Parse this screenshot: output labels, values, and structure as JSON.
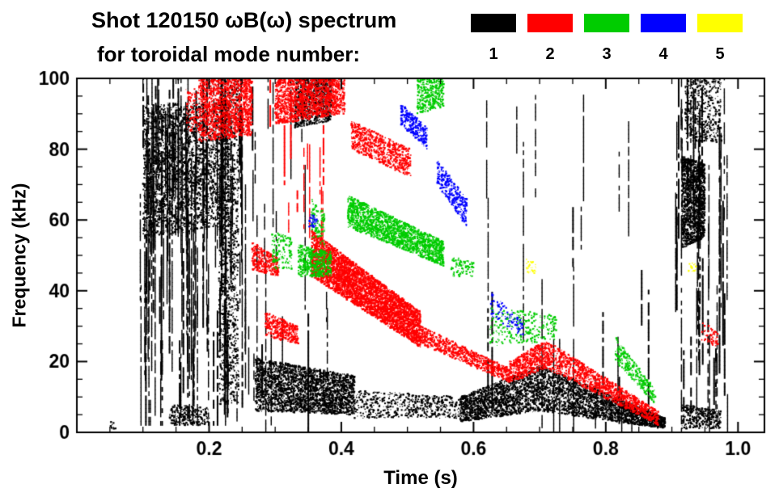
{
  "header": {
    "title_line1": "Shot 120150 ωB(ω) spectrum",
    "title_line2": "for toroidal mode number:"
  },
  "chart_data": {
    "type": "scatter",
    "title": "Shot 120150 ωB(ω) spectrum for toroidal mode number",
    "xlabel": "Time (s)",
    "ylabel": "Frequency (kHz)",
    "xlim": [
      0,
      1.04
    ],
    "ylim": [
      0,
      100
    ],
    "xticks": [
      0.2,
      0.4,
      0.6,
      0.8,
      1.0
    ],
    "xtick_labels": [
      "0.2",
      "0.4",
      "0.6",
      "0.8",
      "1.0"
    ],
    "yticks": [
      0,
      20,
      40,
      60,
      80,
      100
    ],
    "ytick_labels": [
      "0",
      "20",
      "40",
      "60",
      "80",
      "100"
    ],
    "x_minor_step": 0.05,
    "y_minor_step": 5,
    "grid": false,
    "legend_position": "top-right",
    "series": [
      {
        "name": "1",
        "label": "toroidal mode n=1",
        "color": "#000000",
        "clusters": [
          {
            "kind": "streaks",
            "t": [
              0.095,
              0.27
            ],
            "f": [
              2,
              100
            ],
            "count": 120
          },
          {
            "kind": "blob",
            "t": [
              0.1,
              0.23
            ],
            "f_top": [
              93,
              93
            ],
            "f_bot": [
              55,
              58
            ],
            "n": 2800
          },
          {
            "kind": "blob",
            "t": [
              0.215,
              0.245
            ],
            "f_top": [
              100,
              100
            ],
            "f_bot": [
              8,
              8
            ],
            "n": 1300
          },
          {
            "kind": "blob",
            "t": [
              0.14,
              0.2
            ],
            "f_top": [
              8,
              7
            ],
            "f_bot": [
              2,
              2
            ],
            "n": 260
          },
          {
            "kind": "streaks",
            "t": [
              0.265,
              0.385
            ],
            "f": [
              0,
              100
            ],
            "count": 16
          },
          {
            "kind": "blob",
            "t": [
              0.27,
              0.42
            ],
            "f_top": [
              21,
              16
            ],
            "f_bot": [
              6,
              5
            ],
            "n": 2800
          },
          {
            "kind": "blob",
            "t": [
              0.42,
              0.58
            ],
            "f_top": [
              12,
              10
            ],
            "f_bot": [
              4,
              4
            ],
            "n": 550
          },
          {
            "kind": "blob",
            "t": [
              0.33,
              0.385
            ],
            "f_top": [
              100,
              100
            ],
            "f_bot": [
              86,
              88
            ],
            "n": 800
          },
          {
            "kind": "blob",
            "t": [
              0.58,
              0.7
            ],
            "f_top": [
              10,
              19
            ],
            "f_bot": [
              3,
              6
            ],
            "n": 1700
          },
          {
            "kind": "blob",
            "t": [
              0.7,
              0.89
            ],
            "f_top": [
              19,
              4
            ],
            "f_bot": [
              6,
              1
            ],
            "n": 2400
          },
          {
            "kind": "streaks",
            "t": [
              0.585,
              0.87
            ],
            "f": [
              0,
              95
            ],
            "count": 24
          },
          {
            "kind": "blob",
            "t": [
              0.915,
              0.95
            ],
            "f_top": [
              78,
              76
            ],
            "f_bot": [
              52,
              55
            ],
            "n": 1500
          },
          {
            "kind": "streaks",
            "t": [
              0.905,
              0.985
            ],
            "f": [
              0,
              100
            ],
            "count": 42
          },
          {
            "kind": "blob",
            "t": [
              0.92,
              0.975
            ],
            "f_top": [
              100,
              100
            ],
            "f_bot": [
              82,
              82
            ],
            "n": 450
          },
          {
            "kind": "blob",
            "t": [
              0.915,
              0.975
            ],
            "f_top": [
              8,
              6
            ],
            "f_bot": [
              1,
              1
            ],
            "n": 320
          },
          {
            "kind": "blob",
            "t": [
              0.05,
              0.06
            ],
            "f_top": [
              3,
              3
            ],
            "f_bot": [
              1,
              1
            ],
            "n": 10
          }
        ]
      },
      {
        "name": "2",
        "label": "toroidal mode n=2",
        "color": "#ff0000",
        "clusters": [
          {
            "kind": "blob",
            "t": [
              0.165,
              0.19
            ],
            "f_top": [
              97,
              97
            ],
            "f_bot": [
              85,
              85
            ],
            "n": 140
          },
          {
            "kind": "blob",
            "t": [
              0.185,
              0.265
            ],
            "f_top": [
              100,
              100
            ],
            "f_bot": [
              82,
              84
            ],
            "n": 1500
          },
          {
            "kind": "blob",
            "t": [
              0.3,
              0.405
            ],
            "f_top": [
              100,
              100
            ],
            "f_bot": [
              87,
              90
            ],
            "n": 1600
          },
          {
            "kind": "streaks",
            "t": [
              0.285,
              0.375
            ],
            "f": [
              55,
              100
            ],
            "count": 13
          },
          {
            "kind": "blob",
            "t": [
              0.265,
              0.305
            ],
            "f_top": [
              54,
              49
            ],
            "f_bot": [
              46,
              44
            ],
            "n": 320
          },
          {
            "kind": "blob",
            "t": [
              0.285,
              0.335
            ],
            "f_top": [
              34,
              30
            ],
            "f_bot": [
              27,
              25
            ],
            "n": 380
          },
          {
            "kind": "blob",
            "t": [
              0.355,
              0.52
            ],
            "f_top": [
              57,
              34
            ],
            "f_bot": [
              44,
              24
            ],
            "n": 4500
          },
          {
            "kind": "blob",
            "t": [
              0.52,
              0.655
            ],
            "f_top": [
              30,
              18
            ],
            "f_bot": [
              25,
              14
            ],
            "n": 750
          },
          {
            "kind": "blob",
            "t": [
              0.415,
              0.505
            ],
            "f_top": [
              88,
              80
            ],
            "f_bot": [
              80,
              72
            ],
            "n": 750
          },
          {
            "kind": "blob",
            "t": [
              0.655,
              0.71
            ],
            "f_top": [
              20,
              26
            ],
            "f_bot": [
              14,
              18
            ],
            "n": 550
          },
          {
            "kind": "blob",
            "t": [
              0.71,
              0.88
            ],
            "f_top": [
              26,
              6
            ],
            "f_bot": [
              18,
              2
            ],
            "n": 1300
          },
          {
            "kind": "blob",
            "t": [
              0.945,
              0.97
            ],
            "f_top": [
              32,
              28
            ],
            "f_bot": [
              26,
              24
            ],
            "n": 60
          }
        ]
      },
      {
        "name": "3",
        "label": "toroidal mode n=3",
        "color": "#00cc00",
        "clusters": [
          {
            "kind": "blob",
            "t": [
              0.295,
              0.325
            ],
            "f_top": [
              57,
              55
            ],
            "f_bot": [
              46,
              46
            ],
            "n": 130
          },
          {
            "kind": "blob",
            "t": [
              0.335,
              0.385
            ],
            "f_top": [
              53,
              51
            ],
            "f_bot": [
              44,
              44
            ],
            "n": 480
          },
          {
            "kind": "blob",
            "t": [
              0.355,
              0.375
            ],
            "f_top": [
              66,
              62
            ],
            "f_bot": [
              55,
              52
            ],
            "n": 110
          },
          {
            "kind": "blob",
            "t": [
              0.41,
              0.555
            ],
            "f_top": [
              67,
              54
            ],
            "f_bot": [
              58,
              47
            ],
            "n": 1900
          },
          {
            "kind": "blob",
            "t": [
              0.515,
              0.555
            ],
            "f_top": [
              100,
              100
            ],
            "f_bot": [
              90,
              92
            ],
            "n": 380
          },
          {
            "kind": "blob",
            "t": [
              0.565,
              0.6
            ],
            "f_top": [
              50,
              48
            ],
            "f_bot": [
              44,
              44
            ],
            "n": 90
          },
          {
            "kind": "blob",
            "t": [
              0.625,
              0.725
            ],
            "f_top": [
              36,
              33
            ],
            "f_bot": [
              24,
              26
            ],
            "n": 280
          },
          {
            "kind": "blob",
            "t": [
              0.815,
              0.875
            ],
            "f_top": [
              27,
              12
            ],
            "f_bot": [
              20,
              8
            ],
            "n": 280
          }
        ]
      },
      {
        "name": "4",
        "label": "toroidal mode n=4",
        "color": "#0000ff",
        "clusters": [
          {
            "kind": "blob",
            "t": [
              0.49,
              0.53
            ],
            "f_top": [
              93,
              86
            ],
            "f_bot": [
              87,
              80
            ],
            "n": 280
          },
          {
            "kind": "blob",
            "t": [
              0.545,
              0.59
            ],
            "f_top": [
              77,
              66
            ],
            "f_bot": [
              70,
              58
            ],
            "n": 340
          },
          {
            "kind": "blob",
            "t": [
              0.625,
              0.675
            ],
            "f_top": [
              40,
              31
            ],
            "f_bot": [
              33,
              27
            ],
            "n": 100
          },
          {
            "kind": "blob",
            "t": [
              0.35,
              0.365
            ],
            "f_top": [
              62,
              61
            ],
            "f_bot": [
              58,
              58
            ],
            "n": 35
          }
        ]
      },
      {
        "name": "5",
        "label": "toroidal mode n=5",
        "color": "#ffff00",
        "clusters": [
          {
            "kind": "blob",
            "t": [
              0.68,
              0.695
            ],
            "f_top": [
              49,
              48
            ],
            "f_bot": [
              45,
              45
            ],
            "n": 28
          },
          {
            "kind": "blob",
            "t": [
              0.925,
              0.94
            ],
            "f_top": [
              48,
              48
            ],
            "f_bot": [
              45,
              45
            ],
            "n": 16
          }
        ]
      }
    ]
  }
}
